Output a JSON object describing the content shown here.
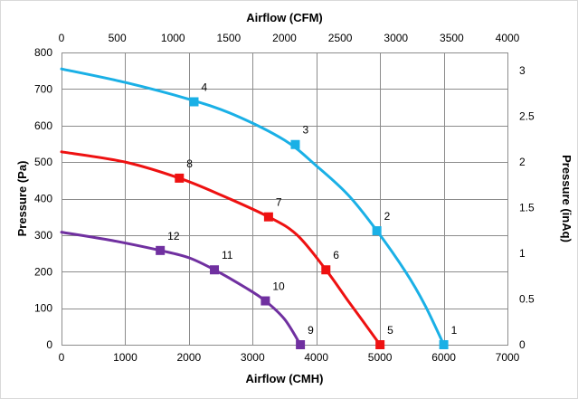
{
  "chart_data": {
    "type": "line",
    "title": "",
    "xlabel": "Airflow (CMH)",
    "ylabel": "Pressure (Pa)",
    "x2label": "Airflow (CFM)",
    "y2label": "Pressure (inAq)",
    "xlim": [
      0,
      7000
    ],
    "ylim": [
      0,
      800
    ],
    "x2lim": [
      0,
      4000
    ],
    "y2lim": [
      0,
      3.2
    ],
    "xticks": [
      "0",
      "1000",
      "2000",
      "3000",
      "4000",
      "5000",
      "6000",
      "7000"
    ],
    "yticks": [
      "0",
      "100",
      "200",
      "300",
      "400",
      "500",
      "600",
      "700",
      "800"
    ],
    "x2ticks": [
      "0",
      "500",
      "1000",
      "1500",
      "2000",
      "2500",
      "3000",
      "3500",
      "4000"
    ],
    "y2ticks": [
      "0",
      "0.5",
      "1",
      "1.5",
      "2",
      "2.5",
      "3"
    ],
    "grid": true,
    "series": [
      {
        "color": "#1ab0e6",
        "curve": [
          [
            0,
            755
          ],
          [
            1000,
            718
          ],
          [
            2000,
            672
          ],
          [
            2700,
            630
          ],
          [
            3500,
            560
          ],
          [
            4000,
            490
          ],
          [
            4500,
            410
          ],
          [
            4950,
            312
          ],
          [
            5400,
            200
          ],
          [
            5700,
            110
          ],
          [
            6000,
            0
          ]
        ],
        "markers": [
          {
            "x": 2080,
            "y": 665,
            "label": "4"
          },
          {
            "x": 3670,
            "y": 548,
            "label": "3"
          },
          {
            "x": 4950,
            "y": 312,
            "label": "2"
          },
          {
            "x": 6000,
            "y": 0,
            "label": "1"
          }
        ]
      },
      {
        "color": "#ee1111",
        "curve": [
          [
            0,
            528
          ],
          [
            1000,
            500
          ],
          [
            1850,
            456
          ],
          [
            2500,
            410
          ],
          [
            3250,
            350
          ],
          [
            3700,
            300
          ],
          [
            4150,
            205
          ],
          [
            4500,
            120
          ],
          [
            5000,
            0
          ]
        ],
        "markers": [
          {
            "x": 1850,
            "y": 456,
            "label": "8"
          },
          {
            "x": 3250,
            "y": 350,
            "label": "7"
          },
          {
            "x": 4150,
            "y": 205,
            "label": "6"
          },
          {
            "x": 5000,
            "y": 0,
            "label": "5"
          }
        ]
      },
      {
        "color": "#7030a0",
        "curve": [
          [
            0,
            308
          ],
          [
            800,
            285
          ],
          [
            1550,
            258
          ],
          [
            2000,
            238
          ],
          [
            2400,
            205
          ],
          [
            2900,
            155
          ],
          [
            3200,
            120
          ],
          [
            3500,
            70
          ],
          [
            3750,
            0
          ]
        ],
        "markers": [
          {
            "x": 1550,
            "y": 258,
            "label": "12"
          },
          {
            "x": 2400,
            "y": 205,
            "label": "11"
          },
          {
            "x": 3200,
            "y": 120,
            "label": "10"
          },
          {
            "x": 3750,
            "y": 0,
            "label": "9"
          }
        ]
      }
    ]
  }
}
